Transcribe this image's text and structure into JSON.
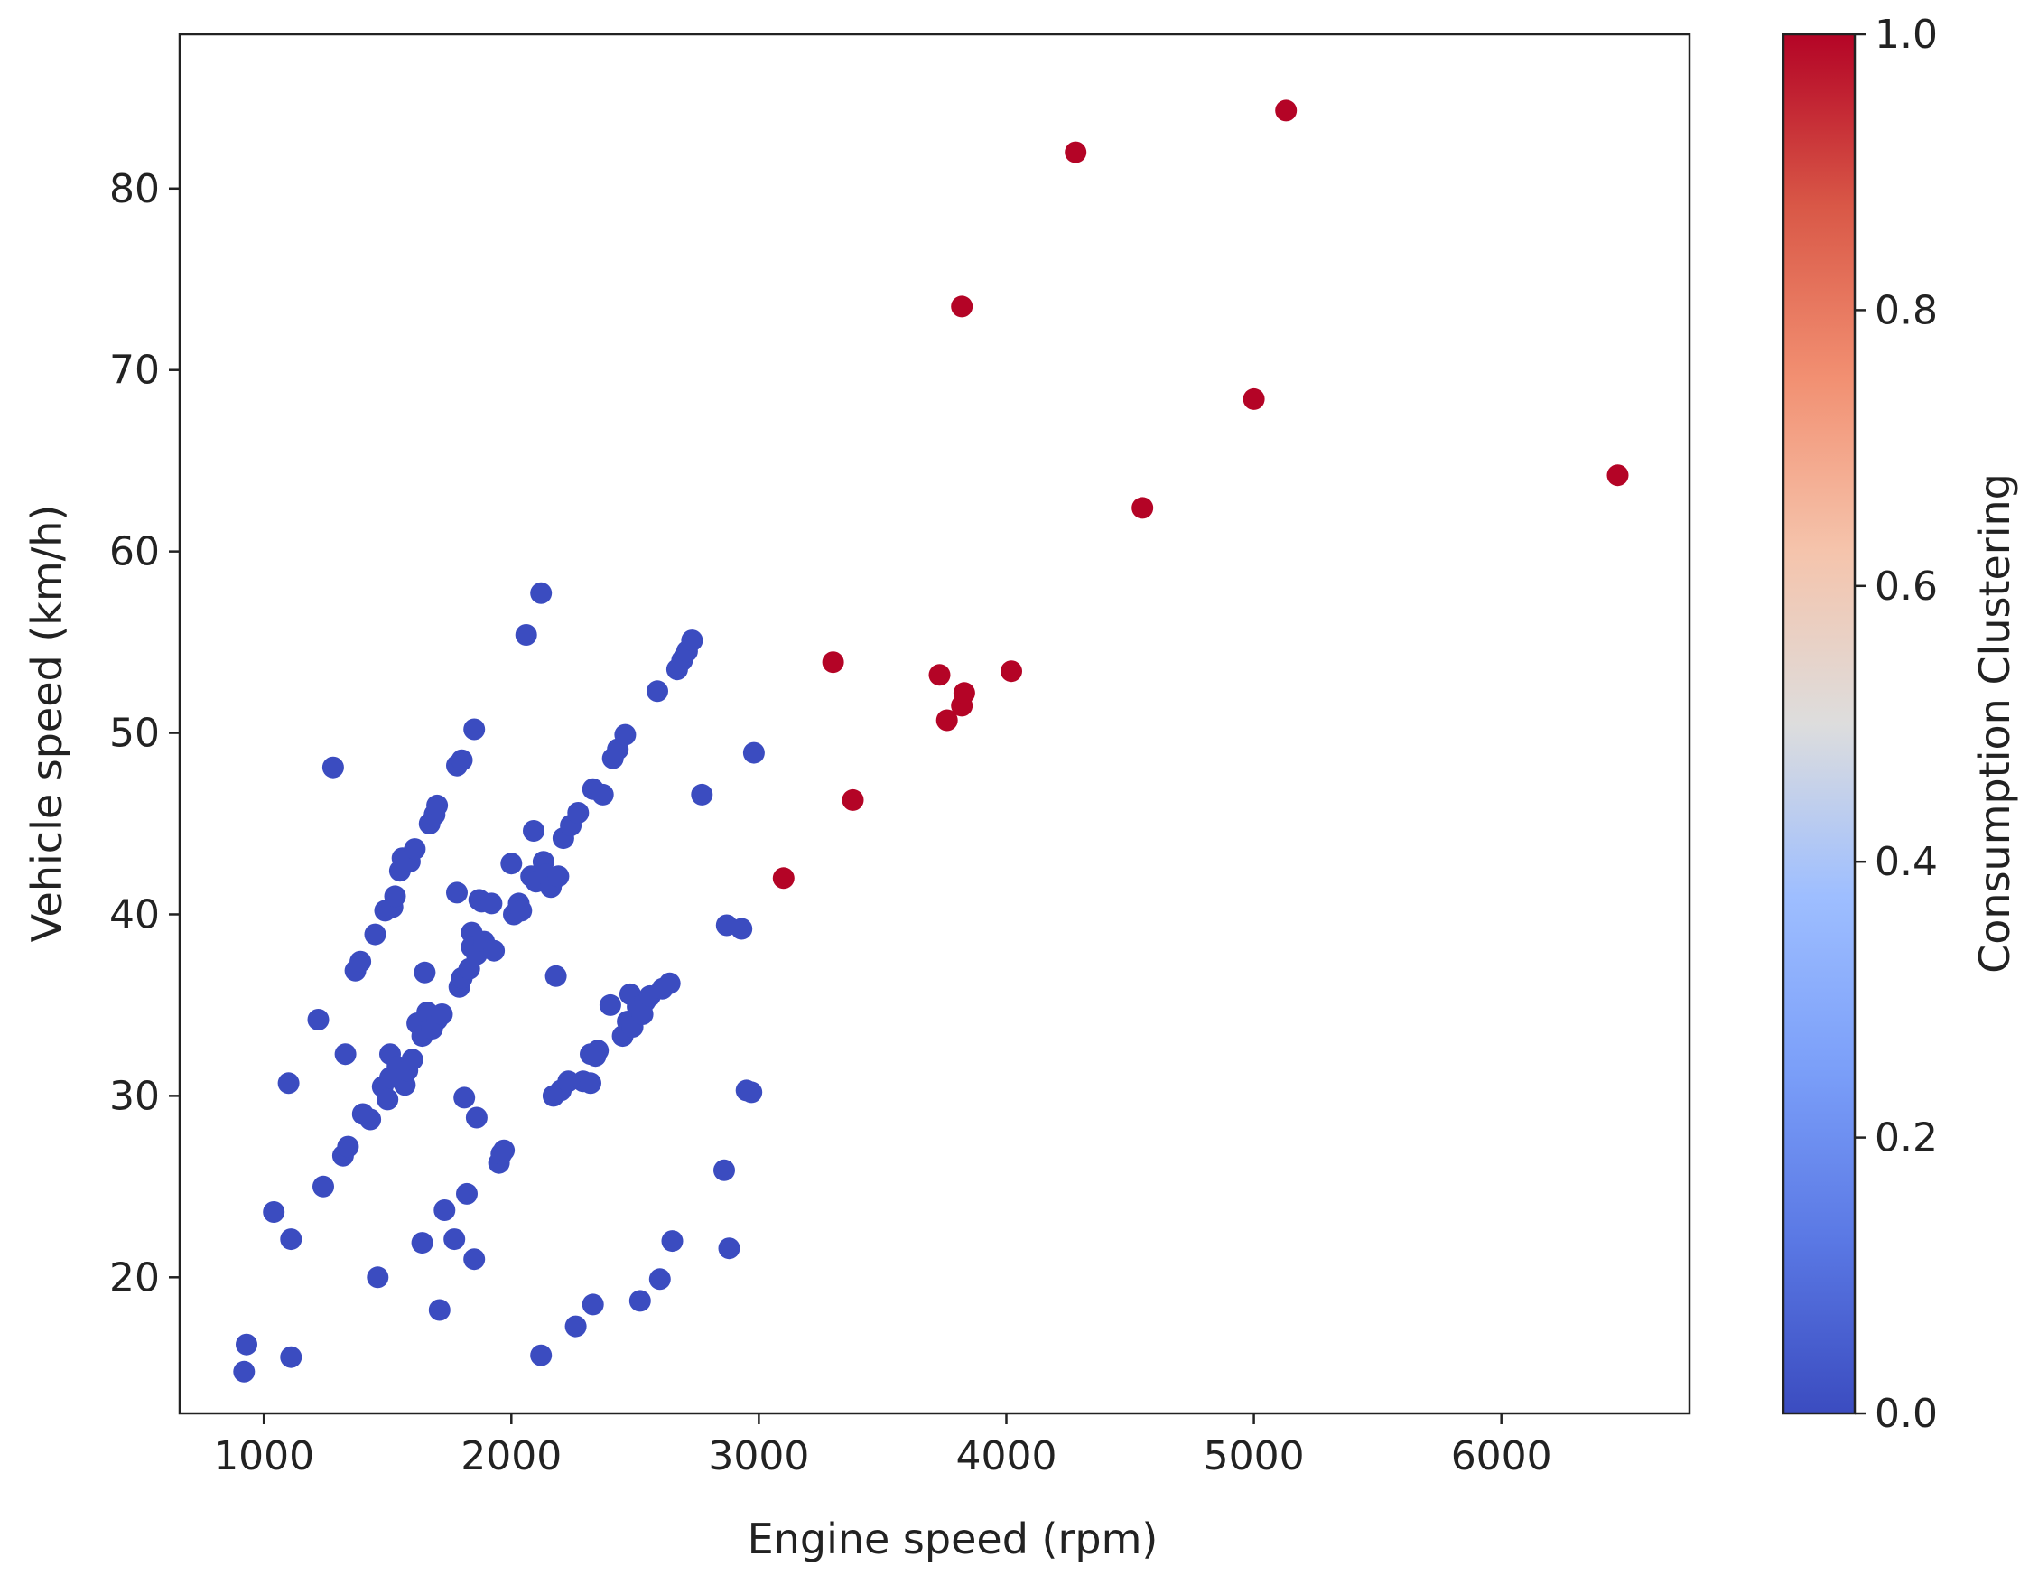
{
  "chart_data": {
    "type": "scatter",
    "title": "",
    "xlabel": "Engine speed (rpm)",
    "ylabel": "Vehicle speed (km/h)",
    "xlim": [
      660,
      6760
    ],
    "ylim": [
      12.5,
      88.5
    ],
    "xticks": [
      1000,
      2000,
      3000,
      4000,
      5000,
      6000
    ],
    "yticks": [
      20,
      30,
      40,
      50,
      60,
      70,
      80
    ],
    "grid": false,
    "colormap": "coolwarm",
    "colors": {
      "low": "#3b4cc0",
      "mid": "#dddddd",
      "high": "#b40426"
    },
    "colorbar": {
      "label": "Consumption Clustering",
      "range": [
        0.0,
        1.0
      ],
      "ticks": [
        "0.0",
        "0.2",
        "0.4",
        "0.6",
        "0.8",
        "1.0"
      ]
    },
    "series": [
      {
        "cluster": 0,
        "color": "#3b4cc0",
        "points": [
          [
            920,
            14.8
          ],
          [
            930,
            16.3
          ],
          [
            1110,
            15.6
          ],
          [
            1040,
            23.6
          ],
          [
            1110,
            22.1
          ],
          [
            1100,
            30.7
          ],
          [
            1220,
            34.2
          ],
          [
            1240,
            25.0
          ],
          [
            1280,
            48.1
          ],
          [
            1320,
            26.7
          ],
          [
            1340,
            27.2
          ],
          [
            1330,
            32.3
          ],
          [
            1370,
            36.9
          ],
          [
            1390,
            37.4
          ],
          [
            1400,
            29.0
          ],
          [
            1430,
            28.7
          ],
          [
            1450,
            38.9
          ],
          [
            1460,
            20.0
          ],
          [
            1480,
            30.5
          ],
          [
            1490,
            40.2
          ],
          [
            1500,
            29.8
          ],
          [
            1510,
            31.0
          ],
          [
            1510,
            32.3
          ],
          [
            1520,
            40.4
          ],
          [
            1530,
            41.0
          ],
          [
            1540,
            31.6
          ],
          [
            1550,
            42.4
          ],
          [
            1560,
            43.1
          ],
          [
            1570,
            30.6
          ],
          [
            1580,
            31.4
          ],
          [
            1590,
            42.9
          ],
          [
            1600,
            32.0
          ],
          [
            1610,
            43.6
          ],
          [
            1620,
            34.0
          ],
          [
            1640,
            21.9
          ],
          [
            1640,
            33.3
          ],
          [
            1650,
            36.8
          ],
          [
            1660,
            34.6
          ],
          [
            1670,
            45.0
          ],
          [
            1680,
            33.7
          ],
          [
            1690,
            45.5
          ],
          [
            1700,
            46.0
          ],
          [
            1700,
            34.2
          ],
          [
            1710,
            18.2
          ],
          [
            1720,
            34.5
          ],
          [
            1730,
            23.7
          ],
          [
            1770,
            22.1
          ],
          [
            1780,
            41.2
          ],
          [
            1780,
            48.2
          ],
          [
            1790,
            36.0
          ],
          [
            1800,
            48.5
          ],
          [
            1800,
            36.5
          ],
          [
            1810,
            29.9
          ],
          [
            1820,
            24.6
          ],
          [
            1830,
            37.0
          ],
          [
            1840,
            39.0
          ],
          [
            1840,
            38.2
          ],
          [
            1850,
            21.0
          ],
          [
            1850,
            50.2
          ],
          [
            1860,
            28.8
          ],
          [
            1860,
            37.8
          ],
          [
            1870,
            40.8
          ],
          [
            1880,
            40.7
          ],
          [
            1890,
            38.5
          ],
          [
            1920,
            40.6
          ],
          [
            1930,
            38.0
          ],
          [
            1950,
            26.3
          ],
          [
            1960,
            26.8
          ],
          [
            1970,
            27.0
          ],
          [
            2000,
            42.8
          ],
          [
            2010,
            40.0
          ],
          [
            2030,
            40.6
          ],
          [
            2040,
            40.2
          ],
          [
            2060,
            55.4
          ],
          [
            2080,
            42.1
          ],
          [
            2090,
            44.6
          ],
          [
            2100,
            41.8
          ],
          [
            2120,
            57.7
          ],
          [
            2120,
            15.7
          ],
          [
            2130,
            42.9
          ],
          [
            2140,
            42.2
          ],
          [
            2160,
            41.5
          ],
          [
            2170,
            30.0
          ],
          [
            2180,
            36.6
          ],
          [
            2190,
            42.1
          ],
          [
            2200,
            30.3
          ],
          [
            2210,
            44.2
          ],
          [
            2230,
            30.8
          ],
          [
            2240,
            44.9
          ],
          [
            2260,
            17.3
          ],
          [
            2270,
            45.6
          ],
          [
            2290,
            30.8
          ],
          [
            2320,
            30.7
          ],
          [
            2320,
            32.3
          ],
          [
            2330,
            46.9
          ],
          [
            2330,
            18.5
          ],
          [
            2340,
            32.2
          ],
          [
            2350,
            32.5
          ],
          [
            2370,
            46.6
          ],
          [
            2400,
            35.0
          ],
          [
            2410,
            48.6
          ],
          [
            2430,
            49.1
          ],
          [
            2450,
            33.3
          ],
          [
            2460,
            49.9
          ],
          [
            2470,
            34.1
          ],
          [
            2480,
            35.6
          ],
          [
            2490,
            33.8
          ],
          [
            2510,
            34.9
          ],
          [
            2520,
            18.7
          ],
          [
            2530,
            34.5
          ],
          [
            2540,
            35.2
          ],
          [
            2560,
            35.5
          ],
          [
            2590,
            52.3
          ],
          [
            2600,
            19.9
          ],
          [
            2610,
            35.9
          ],
          [
            2640,
            36.2
          ],
          [
            2650,
            22.0
          ],
          [
            2670,
            53.5
          ],
          [
            2690,
            54.0
          ],
          [
            2710,
            54.5
          ],
          [
            2730,
            55.1
          ],
          [
            2770,
            46.6
          ],
          [
            2860,
            25.9
          ],
          [
            2870,
            39.4
          ],
          [
            2880,
            21.6
          ],
          [
            2930,
            39.2
          ],
          [
            2950,
            30.3
          ],
          [
            2970,
            30.2
          ],
          [
            2980,
            48.9
          ]
        ]
      },
      {
        "cluster": 1,
        "color": "#b40426",
        "points": [
          [
            3100,
            42.0
          ],
          [
            3300,
            53.9
          ],
          [
            3380,
            46.3
          ],
          [
            3730,
            53.2
          ],
          [
            3760,
            50.7
          ],
          [
            3820,
            73.5
          ],
          [
            3820,
            51.5
          ],
          [
            3830,
            52.2
          ],
          [
            4020,
            53.4
          ],
          [
            4280,
            82.0
          ],
          [
            4550,
            62.4
          ],
          [
            5000,
            68.4
          ],
          [
            5130,
            84.3
          ],
          [
            6470,
            64.2
          ]
        ]
      }
    ]
  }
}
